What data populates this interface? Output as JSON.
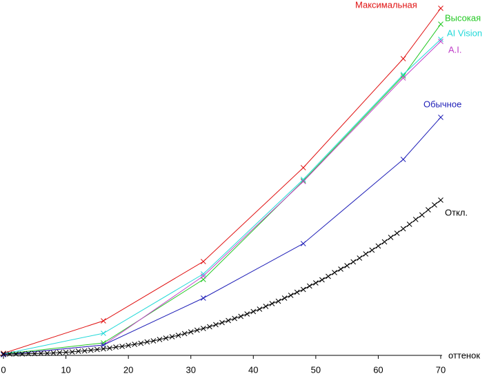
{
  "chart_data": {
    "type": "line",
    "x_label": "оттенок",
    "xlim": [
      0,
      70
    ],
    "xticks": [
      0,
      10,
      20,
      30,
      40,
      50,
      60,
      70
    ],
    "ylim": [
      0,
      102
    ],
    "series": [
      {
        "name": "Максимальная",
        "color": "#e01010",
        "x": [
          0,
          16,
          32,
          48,
          64,
          70
        ],
        "values": [
          0.6,
          10,
          27.2,
          54.4,
          86,
          100.6
        ]
      },
      {
        "name": "Высокая",
        "color": "#22c822",
        "x": [
          0,
          16,
          32,
          48,
          64,
          70
        ],
        "values": [
          0.4,
          3.6,
          22,
          50.6,
          81,
          96
        ]
      },
      {
        "name": "AI Vision",
        "color": "#20d8d8",
        "x": [
          0,
          16,
          32,
          48,
          64,
          70
        ],
        "values": [
          0.4,
          6.4,
          23.6,
          51,
          81.4,
          91.6
        ]
      },
      {
        "name": "A.I.",
        "color": "#c040c8",
        "x": [
          0,
          16,
          32,
          48,
          64,
          70
        ],
        "values": [
          0.2,
          3,
          23,
          50.4,
          80.4,
          91
        ]
      },
      {
        "name": "Обычное",
        "color": "#2020b8",
        "x": [
          0,
          16,
          32,
          48,
          64,
          70
        ],
        "values": [
          0.2,
          3,
          16.6,
          32.4,
          56.8,
          69
        ]
      },
      {
        "name": "Откл.",
        "color": "#000000",
        "x": [
          0,
          1,
          2,
          3,
          4,
          5,
          6,
          7,
          8,
          9,
          10,
          11,
          12,
          13,
          14,
          15,
          16,
          17,
          18,
          19,
          20,
          21,
          22,
          23,
          24,
          25,
          26,
          27,
          28,
          29,
          30,
          31,
          32,
          33,
          34,
          35,
          36,
          37,
          38,
          39,
          40,
          41,
          42,
          43,
          44,
          45,
          46,
          47,
          48,
          49,
          50,
          51,
          52,
          53,
          54,
          55,
          56,
          57,
          58,
          59,
          60,
          61,
          62,
          63,
          64,
          65,
          66,
          67,
          68,
          69,
          70
        ],
        "values": [
          0.4,
          0.4,
          0.4,
          0.4,
          0.5,
          0.5,
          0.6,
          0.6,
          0.7,
          0.8,
          0.9,
          1.0,
          1.2,
          1.3,
          1.5,
          1.7,
          1.9,
          2.1,
          2.4,
          2.6,
          2.9,
          3.2,
          3.5,
          3.9,
          4.2,
          4.6,
          5.0,
          5.4,
          5.8,
          6.3,
          6.8,
          7.3,
          7.8,
          8.3,
          8.9,
          9.5,
          10.1,
          10.7,
          11.3,
          12.0,
          12.7,
          13.4,
          14.2,
          15.0,
          15.7,
          16.6,
          17.4,
          18.3,
          19.1,
          20.1,
          21.0,
          21.9,
          22.9,
          24.0,
          25.0,
          26.0,
          27.1,
          28.2,
          29.4,
          30.5,
          31.7,
          32.9,
          34.2,
          35.4,
          36.7,
          38.0,
          39.4,
          40.7,
          42.2,
          43.6,
          45.0
        ]
      }
    ]
  }
}
